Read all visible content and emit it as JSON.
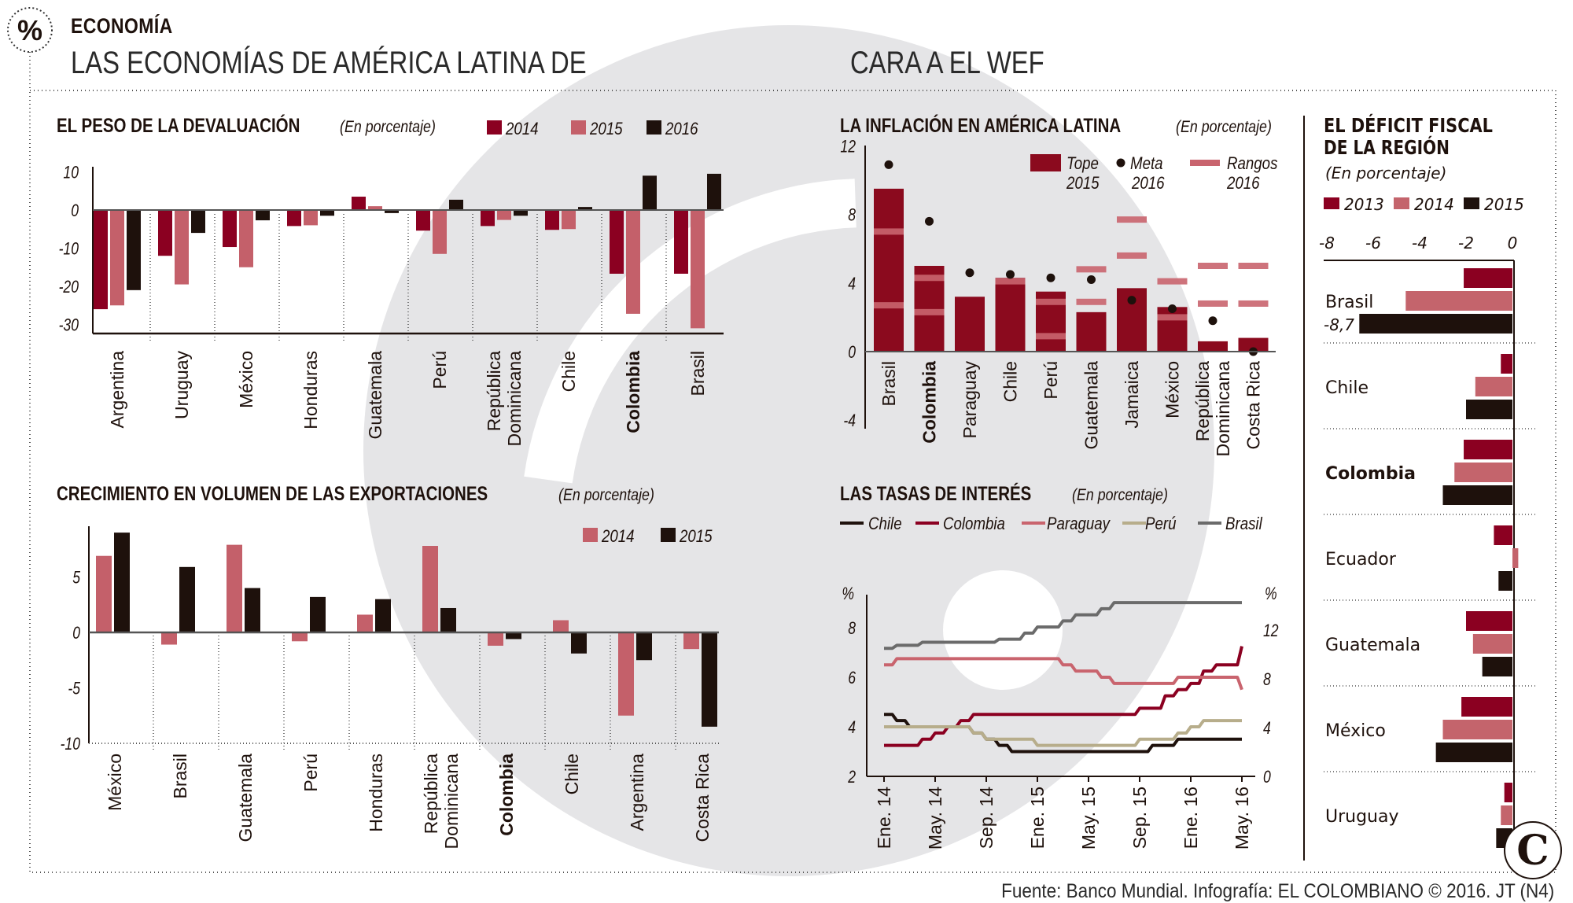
{
  "header": {
    "icon": "percent-icon",
    "icon_glyph": "%",
    "section": "ECONOMÍA",
    "title_left": "LAS ECONOMÍAS DE AMÉRICA LATINA DE",
    "title_right": "CARA A EL WEF"
  },
  "footer": {
    "source": "Fuente: Banco Mundial. Infografía: EL COLOMBIANO © 2016. JT (N4)",
    "logo": "C"
  },
  "colors": {
    "dark_red": "#8b0021",
    "pink": "#c4606a",
    "black": "#1e110c",
    "beige": "#b7ad8b",
    "grey": "#6b6b6b",
    "watermark": "#e5e5e7"
  },
  "chart_data": [
    {
      "type": "bar",
      "title": "EL PESO DE LA DEVALUACIÓN",
      "subtitle": "(En porcentaje)",
      "categories": [
        "Argentina",
        "Uruguay",
        "México",
        "Honduras",
        "Guatemala",
        "Perú",
        [
          "República",
          "Dominicana"
        ],
        "Chile",
        "Colombia",
        "Brasil"
      ],
      "highlight": "Colombia",
      "ylim": [
        -30,
        10
      ],
      "yticks": [
        10,
        0,
        -10,
        -20,
        -30
      ],
      "legend": "top-right",
      "series": [
        {
          "name": "2014",
          "color": "#8b0021",
          "values": [
            -26,
            -12,
            -9.7,
            -4.2,
            3.5,
            -5.4,
            -4.2,
            -5.2,
            -16.7,
            -16.7
          ]
        },
        {
          "name": "2015",
          "color": "#c4606a",
          "values": [
            -25,
            -19.5,
            -15,
            -4,
            1,
            -11.5,
            -2.6,
            -5,
            -27.2,
            -31
          ]
        },
        {
          "name": "2016",
          "color": "#1e110c",
          "values": [
            -21,
            -6,
            -2.7,
            -1.5,
            -0.8,
            2.7,
            -1.5,
            0.8,
            9,
            9.5
          ]
        }
      ]
    },
    {
      "type": "bar",
      "title": "CRECIMIENTO EN VOLUMEN DE LAS EXPORTACIONES",
      "subtitle": "(En porcentaje)",
      "categories": [
        "México",
        "Brasil",
        "Guatemala",
        "Perú",
        "Honduras",
        [
          "República",
          "Dominicana"
        ],
        "Colombia",
        "Chile",
        "Argentina",
        "Costa Rica"
      ],
      "highlight": "Colombia",
      "ylim": [
        -10,
        9
      ],
      "yticks": [
        5,
        0,
        -5,
        -10
      ],
      "legend": "top-right",
      "series": [
        {
          "name": "2014",
          "color": "#c4606a",
          "values": [
            6.9,
            -1.1,
            7.9,
            -0.8,
            1.6,
            7.8,
            -1.2,
            1.1,
            -7.5,
            -1.5
          ]
        },
        {
          "name": "2015",
          "color": "#1e110c",
          "values": [
            9.0,
            5.9,
            4.0,
            3.2,
            3.0,
            2.2,
            -0.6,
            -1.9,
            -2.5,
            -8.5
          ]
        }
      ]
    },
    {
      "type": "bar",
      "title": "LA INFLACIÓN EN AMÉRICA LATINA",
      "subtitle": "(En porcentaje)",
      "categories": [
        "Brasil",
        "Colombia",
        "Paraguay",
        "Chile",
        "Perú",
        "Guatemala",
        "Jamaica",
        "México",
        [
          "República",
          "Dominicana"
        ],
        "Costa Rica"
      ],
      "highlight": "Colombia",
      "ylim": [
        -4,
        12
      ],
      "yticks": [
        12,
        8,
        4,
        0,
        -4
      ],
      "legend": "top-right",
      "tope": {
        "name": [
          "Tope",
          "2015"
        ],
        "color": "#8b0a1e",
        "values": [
          9.5,
          5.0,
          3.2,
          4.3,
          3.5,
          2.3,
          3.7,
          2.6,
          0.6,
          0.8
        ]
      },
      "meta": {
        "name": [
          "Meta",
          "2016"
        ],
        "color": "#1e110c",
        "values": [
          10.9,
          7.6,
          4.6,
          4.5,
          4.3,
          4.2,
          3.0,
          2.5,
          1.8,
          0
        ]
      },
      "rangos": {
        "name": [
          "Rangos",
          "2016"
        ],
        "color": "#c9646e",
        "values": [
          [
            2.7,
            7.0
          ],
          [
            2.3,
            4.3
          ],
          [],
          [
            4.1
          ],
          [
            0.9,
            2.9
          ],
          [
            2.9,
            4.8
          ],
          [
            5.6,
            7.7
          ],
          [
            2.0,
            4.1
          ],
          [
            2.8,
            5.0
          ],
          [
            2.8,
            5.0
          ]
        ]
      }
    },
    {
      "type": "line",
      "title": "LAS TASAS DE INTERÉS",
      "subtitle": "(En porcentaje)",
      "unit": "%",
      "x": [
        "2014-01",
        "2014-02",
        "2014-03",
        "2014-04",
        "2014-05",
        "2014-06",
        "2014-07",
        "2014-08",
        "2014-09",
        "2014-10",
        "2014-11",
        "2014-12",
        "2015-01",
        "2015-02",
        "2015-03",
        "2015-04",
        "2015-05",
        "2015-06",
        "2015-07",
        "2015-08",
        "2015-09",
        "2015-10",
        "2015-11",
        "2015-12",
        "2016-01",
        "2016-02",
        "2016-03",
        "2016-04",
        "2016-05"
      ],
      "xticks": [
        "Ene. 14",
        "May. 14",
        "Sep. 14",
        "Ene. 15",
        "May. 15",
        "Sep. 15",
        "Ene. 16",
        "May. 16"
      ],
      "ylim_left": [
        2,
        9
      ],
      "yticks_left": [
        8,
        6,
        4,
        2
      ],
      "ylim_right": [
        0,
        15
      ],
      "yticks_right": [
        12,
        8,
        4,
        0
      ],
      "legend": "top",
      "series": [
        {
          "name": "Chile",
          "axis": "left",
          "color": "#1e110c",
          "values": [
            4.5,
            4.25,
            4.0,
            4.0,
            4.0,
            4.0,
            4.0,
            3.75,
            3.5,
            3.25,
            3.0,
            3.0,
            3.0,
            3.0,
            3.0,
            3.0,
            3.0,
            3.0,
            3.0,
            3.0,
            3.0,
            3.25,
            3.25,
            3.5,
            3.5,
            3.5,
            3.5,
            3.5,
            3.5
          ]
        },
        {
          "name": "Colombia",
          "axis": "left",
          "color": "#8b0021",
          "values": [
            3.25,
            3.25,
            3.25,
            3.5,
            3.75,
            4.0,
            4.25,
            4.5,
            4.5,
            4.5,
            4.5,
            4.5,
            4.5,
            4.5,
            4.5,
            4.5,
            4.5,
            4.5,
            4.5,
            4.5,
            4.75,
            4.75,
            5.25,
            5.5,
            5.75,
            6.25,
            6.5,
            6.5,
            7.25
          ]
        },
        {
          "name": "Paraguay",
          "axis": "left",
          "color": "#c9646e",
          "values": [
            6.5,
            6.75,
            6.75,
            6.75,
            6.75,
            6.75,
            6.75,
            6.75,
            6.75,
            6.75,
            6.75,
            6.75,
            6.75,
            6.75,
            6.5,
            6.25,
            6.25,
            6.0,
            5.75,
            5.75,
            5.75,
            5.75,
            5.75,
            6.0,
            6.0,
            6.0,
            6.0,
            6.0,
            5.5
          ]
        },
        {
          "name": "Perú",
          "axis": "left",
          "color": "#b7ad8b",
          "values": [
            4.0,
            4.0,
            4.0,
            4.0,
            4.0,
            4.0,
            4.0,
            3.75,
            3.5,
            3.5,
            3.5,
            3.5,
            3.25,
            3.25,
            3.25,
            3.25,
            3.25,
            3.25,
            3.25,
            3.25,
            3.5,
            3.5,
            3.5,
            3.75,
            4.0,
            4.25,
            4.25,
            4.25,
            4.25
          ]
        },
        {
          "name": "Brasil",
          "axis": "right",
          "color": "#6b6b6b",
          "values": [
            10.5,
            10.75,
            10.75,
            11,
            11,
            11,
            11,
            11,
            11,
            11.25,
            11.25,
            11.75,
            12.25,
            12.25,
            12.75,
            13.25,
            13.25,
            13.75,
            14.25,
            14.25,
            14.25,
            14.25,
            14.25,
            14.25,
            14.25,
            14.25,
            14.25,
            14.25,
            14.25
          ]
        }
      ]
    },
    {
      "type": "bar",
      "orientation": "horizontal",
      "title": [
        "EL DÉFICIT FISCAL",
        "DE LA REGIÓN"
      ],
      "subtitle": "(En porcentaje)",
      "categories": [
        "Brasil",
        "Chile",
        "Colombia",
        "Ecuador",
        "Guatemala",
        "México",
        "Uruguay"
      ],
      "highlight": "Colombia",
      "xlim": [
        -8,
        0
      ],
      "xticks": [
        -8,
        -6,
        -4,
        -2,
        0
      ],
      "legend": "top",
      "annotation": "-8,7",
      "series": [
        {
          "name": "2013",
          "color": "#8b0021",
          "values": [
            -2.1,
            -0.5,
            -2.1,
            -0.8,
            -2.0,
            -2.2,
            -0.35
          ]
        },
        {
          "name": "2014",
          "color": "#c4646c",
          "values": [
            -4.6,
            -1.6,
            -2.5,
            0.25,
            -1.7,
            -3.0,
            -0.5
          ]
        },
        {
          "name": "2015",
          "color": "#1e110c",
          "values": [
            -8.7,
            -2.0,
            -3.0,
            -0.6,
            -1.3,
            -3.3,
            -0.7
          ]
        }
      ]
    }
  ]
}
